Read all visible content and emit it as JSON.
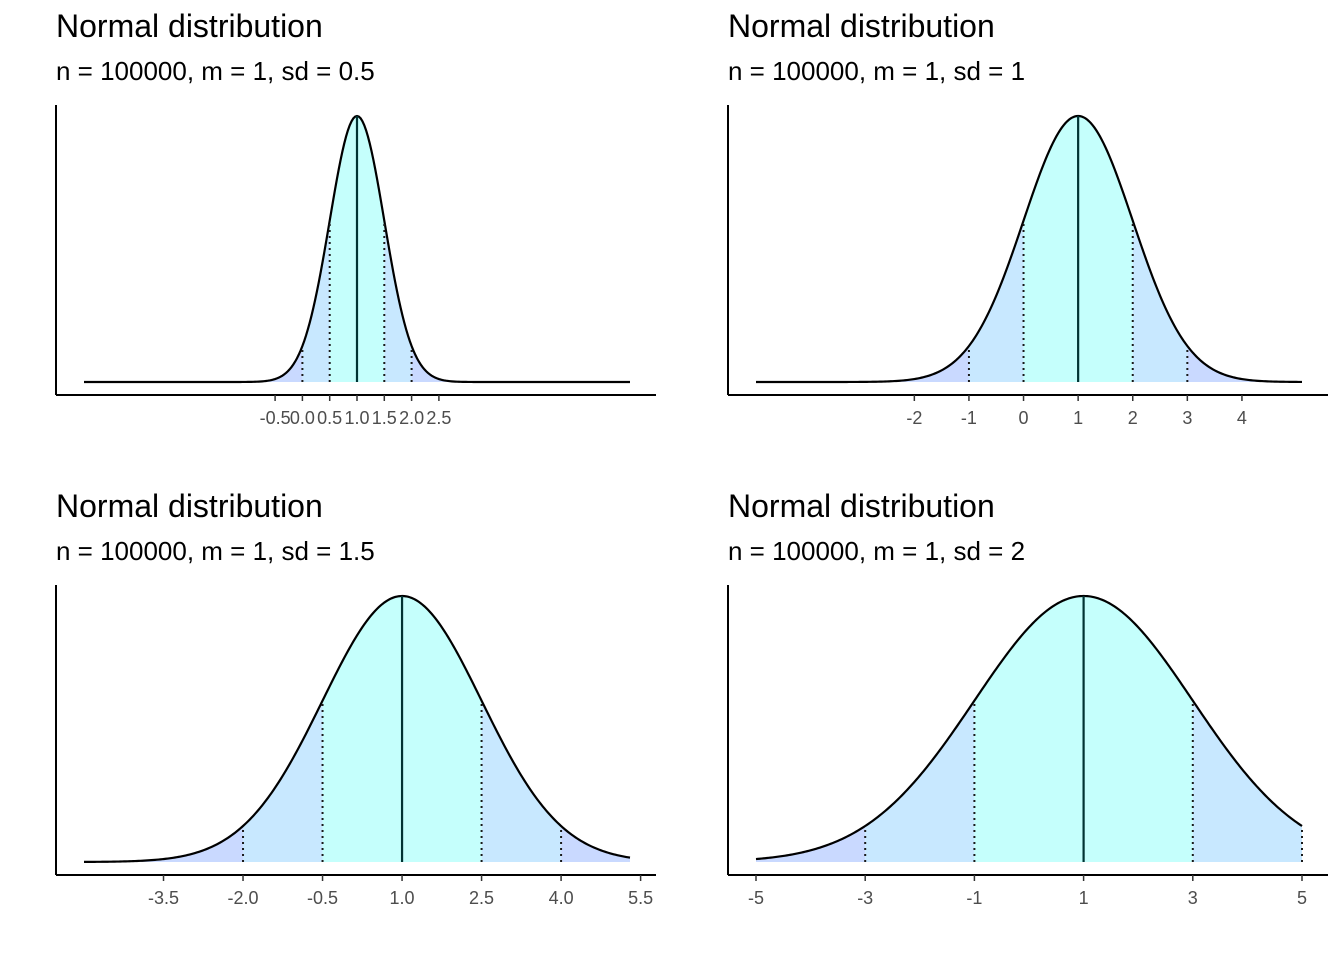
{
  "colors": {
    "tail_fill": "#c9d9ff",
    "mid_fill": "#c8e8ff",
    "center_fill": "#c5fffc",
    "curve": "#000000",
    "mean_line": "#003333"
  },
  "chart_data": [
    {
      "type": "area",
      "title": "Normal distribution",
      "subtitle": "n = 100000, m = 1, sd = 0.5",
      "mean": 1,
      "sd": 0.5,
      "x_range": [
        -4,
        6
      ],
      "ticks": [
        -0.5,
        0.0,
        0.5,
        1.0,
        1.5,
        2.0,
        2.5
      ],
      "tick_labels": [
        "-0.5",
        "0.0",
        "0.5",
        "1.0",
        "1.5",
        "2.0",
        "2.5"
      ],
      "sd_markers": [
        0.0,
        0.5,
        1.5,
        2.0
      ]
    },
    {
      "type": "area",
      "title": "Normal distribution",
      "subtitle": "n = 100000, m = 1, sd = 1",
      "mean": 1,
      "sd": 1,
      "x_range": [
        -4.9,
        5.1
      ],
      "ticks": [
        -2,
        -1,
        0,
        1,
        2,
        3,
        4
      ],
      "tick_labels": [
        "-2",
        "-1",
        "0",
        "1",
        "2",
        "3",
        "4"
      ],
      "sd_markers": [
        -1,
        0,
        2,
        3
      ]
    },
    {
      "type": "area",
      "title": "Normal distribution",
      "subtitle": "n = 100000, m = 1, sd = 1.5",
      "mean": 1,
      "sd": 1.5,
      "x_range": [
        -5.0,
        5.3
      ],
      "ticks": [
        -3.5,
        -2.0,
        -0.5,
        1.0,
        2.5,
        4.0,
        5.5
      ],
      "tick_labels": [
        "-3.5",
        "-2.0",
        "-0.5",
        "1.0",
        "2.5",
        "4.0",
        "5.5"
      ],
      "sd_markers": [
        -2.0,
        -0.5,
        2.5,
        4.0
      ]
    },
    {
      "type": "area",
      "title": "Normal distribution",
      "subtitle": "n = 100000, m = 1, sd = 2",
      "mean": 1,
      "sd": 2,
      "x_range": [
        -5,
        5
      ],
      "ticks": [
        -5,
        -3,
        -1,
        1,
        3,
        5
      ],
      "tick_labels": [
        "-5",
        "-3",
        "-1",
        "1",
        "3",
        "5"
      ],
      "sd_markers": [
        -3,
        -1,
        3,
        5
      ]
    }
  ]
}
